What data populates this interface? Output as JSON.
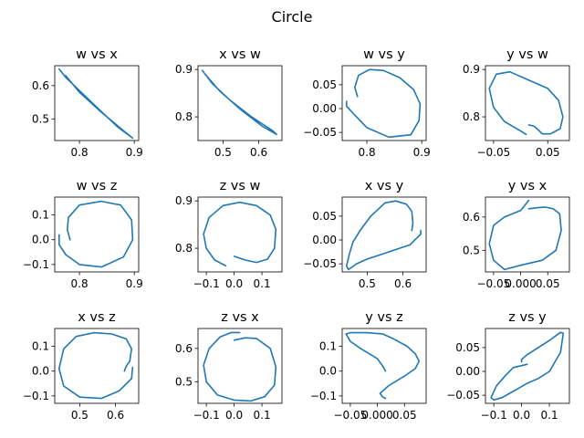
{
  "suptitle": "Circle",
  "line_color": "#1f77b4",
  "chart_data": [
    {
      "type": "line",
      "title": "w vs x",
      "xlim": [
        0.755,
        0.908
      ],
      "ylim": [
        0.435,
        0.66
      ],
      "xticks": [
        {
          "v": 0.8,
          "label": "0.8"
        },
        {
          "v": 0.9,
          "label": "0.9"
        }
      ],
      "yticks": [
        {
          "v": 0.5,
          "label": "0.5"
        },
        {
          "v": 0.6,
          "label": "0.6"
        }
      ],
      "x": [
        0.763,
        0.775,
        0.8,
        0.835,
        0.87,
        0.897,
        0.88,
        0.84,
        0.8,
        0.775
      ],
      "y": [
        0.65,
        0.625,
        0.585,
        0.53,
        0.475,
        0.442,
        0.465,
        0.52,
        0.58,
        0.63
      ]
    },
    {
      "type": "line",
      "title": "x vs w",
      "xlim": [
        0.43,
        0.665
      ],
      "ylim": [
        0.75,
        0.908
      ],
      "xticks": [
        {
          "v": 0.5,
          "label": "0.5"
        },
        {
          "v": 0.6,
          "label": "0.6"
        }
      ],
      "yticks": [
        {
          "v": 0.8,
          "label": "0.8"
        },
        {
          "v": 0.9,
          "label": "0.9"
        }
      ],
      "x": [
        0.442,
        0.47,
        0.52,
        0.58,
        0.64,
        0.65,
        0.61,
        0.55,
        0.49,
        0.45
      ],
      "y": [
        0.898,
        0.87,
        0.835,
        0.8,
        0.77,
        0.763,
        0.78,
        0.815,
        0.855,
        0.89
      ]
    },
    {
      "type": "line",
      "title": "w vs y",
      "xlim": [
        0.755,
        0.908
      ],
      "ylim": [
        -0.067,
        0.09
      ],
      "xticks": [
        {
          "v": 0.8,
          "label": "0.8"
        },
        {
          "v": 0.9,
          "label": "0.9"
        }
      ],
      "yticks": [
        {
          "v": -0.05,
          "label": "−0.05"
        },
        {
          "v": 0.0,
          "label": "0.00"
        },
        {
          "v": 0.05,
          "label": "0.05"
        }
      ],
      "x": [
        0.783,
        0.778,
        0.785,
        0.805,
        0.83,
        0.86,
        0.885,
        0.897,
        0.895,
        0.88,
        0.84,
        0.8,
        0.775,
        0.763,
        0.763
      ],
      "y": [
        0.025,
        0.045,
        0.07,
        0.082,
        0.08,
        0.065,
        0.04,
        0.01,
        -0.025,
        -0.055,
        -0.06,
        -0.04,
        -0.01,
        0.005,
        0.015
      ]
    },
    {
      "type": "line",
      "title": "y vs w",
      "xlim": [
        -0.065,
        0.09
      ],
      "ylim": [
        0.75,
        0.908
      ],
      "xticks": [
        {
          "v": -0.05,
          "label": "−0.05"
        },
        {
          "v": 0.05,
          "label": "0.05"
        }
      ],
      "yticks": [
        {
          "v": 0.8,
          "label": "0.8"
        },
        {
          "v": 0.9,
          "label": "0.9"
        }
      ],
      "x": [
        0.015,
        0.025,
        0.03,
        0.04,
        0.055,
        0.073,
        0.078,
        0.07,
        0.05,
        0.02,
        -0.02,
        -0.045,
        -0.058,
        -0.05,
        -0.03,
        0.0,
        0.01
      ],
      "y": [
        0.783,
        0.78,
        0.775,
        0.764,
        0.764,
        0.775,
        0.8,
        0.835,
        0.86,
        0.875,
        0.895,
        0.89,
        0.86,
        0.82,
        0.79,
        0.77,
        0.763
      ]
    },
    {
      "type": "line",
      "title": "w vs z",
      "xlim": [
        0.755,
        0.908
      ],
      "ylim": [
        -0.13,
        0.172
      ],
      "xticks": [
        {
          "v": 0.8,
          "label": "0.8"
        },
        {
          "v": 0.9,
          "label": "0.9"
        }
      ],
      "yticks": [
        {
          "v": -0.1,
          "label": "−0.1"
        },
        {
          "v": 0.0,
          "label": "0.0"
        },
        {
          "v": 0.1,
          "label": "0.1"
        }
      ],
      "x": [
        0.783,
        0.778,
        0.78,
        0.8,
        0.84,
        0.875,
        0.895,
        0.897,
        0.88,
        0.84,
        0.8,
        0.775,
        0.763,
        0.763
      ],
      "y": [
        0.0,
        0.04,
        0.09,
        0.14,
        0.155,
        0.14,
        0.08,
        0.0,
        -0.07,
        -0.11,
        -0.1,
        -0.06,
        -0.02,
        0.02
      ]
    },
    {
      "type": "line",
      "title": "z vs w",
      "xlim": [
        -0.13,
        0.172
      ],
      "ylim": [
        0.75,
        0.908
      ],
      "xticks": [
        {
          "v": -0.1,
          "label": "−0.1"
        },
        {
          "v": 0.0,
          "label": "0.0"
        },
        {
          "v": 0.1,
          "label": "0.1"
        }
      ],
      "yticks": [
        {
          "v": 0.8,
          "label": "0.8"
        },
        {
          "v": 0.9,
          "label": "0.9"
        }
      ],
      "x": [
        0.0,
        0.04,
        0.08,
        0.12,
        0.145,
        0.15,
        0.13,
        0.08,
        0.02,
        -0.04,
        -0.09,
        -0.11,
        -0.1,
        -0.07,
        -0.03
      ],
      "y": [
        0.783,
        0.775,
        0.77,
        0.777,
        0.8,
        0.84,
        0.87,
        0.89,
        0.897,
        0.89,
        0.865,
        0.83,
        0.8,
        0.775,
        0.763
      ]
    },
    {
      "type": "line",
      "title": "x vs y",
      "xlim": [
        0.43,
        0.665
      ],
      "ylim": [
        -0.067,
        0.09
      ],
      "xticks": [
        {
          "v": 0.5,
          "label": "0.5"
        },
        {
          "v": 0.6,
          "label": "0.6"
        }
      ],
      "yticks": [
        {
          "v": -0.05,
          "label": "−0.05"
        },
        {
          "v": 0.0,
          "label": "0.00"
        },
        {
          "v": 0.05,
          "label": "0.05"
        }
      ],
      "x": [
        0.625,
        0.628,
        0.625,
        0.61,
        0.58,
        0.55,
        0.51,
        0.48,
        0.46,
        0.45,
        0.442,
        0.448,
        0.47,
        0.5,
        0.54,
        0.58,
        0.62,
        0.64,
        0.65,
        0.65
      ],
      "y": [
        0.02,
        0.035,
        0.06,
        0.075,
        0.082,
        0.078,
        0.05,
        0.02,
        -0.005,
        -0.03,
        -0.055,
        -0.062,
        -0.05,
        -0.04,
        -0.03,
        -0.02,
        -0.01,
        0.005,
        0.012,
        0.02
      ]
    },
    {
      "type": "line",
      "title": "y vs x",
      "xlim": [
        -0.065,
        0.09
      ],
      "ylim": [
        0.435,
        0.66
      ],
      "xticks": [
        {
          "v": -0.05,
          "label": "−0.05"
        },
        {
          "v": 0.0,
          "label": "0.000"
        },
        {
          "v": 0.05,
          "label": "0.05"
        }
      ],
      "yticks": [
        {
          "v": 0.5,
          "label": "0.5"
        },
        {
          "v": 0.6,
          "label": "0.6"
        }
      ],
      "x": [
        0.015,
        0.03,
        0.045,
        0.06,
        0.072,
        0.075,
        0.065,
        0.04,
        0.0,
        -0.03,
        -0.05,
        -0.058,
        -0.05,
        -0.03,
        0.0,
        0.01,
        0.015
      ],
      "y": [
        0.625,
        0.628,
        0.63,
        0.625,
        0.61,
        0.56,
        0.5,
        0.47,
        0.455,
        0.442,
        0.47,
        0.52,
        0.575,
        0.6,
        0.62,
        0.64,
        0.65
      ]
    },
    {
      "type": "line",
      "title": "x vs z",
      "xlim": [
        0.43,
        0.665
      ],
      "ylim": [
        -0.13,
        0.172
      ],
      "xticks": [
        {
          "v": 0.5,
          "label": "0.5"
        },
        {
          "v": 0.6,
          "label": "0.6"
        }
      ],
      "yticks": [
        {
          "v": -0.1,
          "label": "−0.1"
        },
        {
          "v": 0.0,
          "label": "0.0"
        },
        {
          "v": 0.1,
          "label": "0.1"
        }
      ],
      "x": [
        0.625,
        0.63,
        0.64,
        0.645,
        0.63,
        0.59,
        0.54,
        0.49,
        0.455,
        0.442,
        0.455,
        0.5,
        0.56,
        0.61,
        0.645,
        0.648
      ],
      "y": [
        0.0,
        0.02,
        0.04,
        0.09,
        0.13,
        0.15,
        0.155,
        0.14,
        0.09,
        0.01,
        -0.06,
        -0.105,
        -0.11,
        -0.08,
        -0.03,
        0.015
      ]
    },
    {
      "type": "line",
      "title": "z vs x",
      "xlim": [
        -0.13,
        0.172
      ],
      "ylim": [
        0.435,
        0.66
      ],
      "xticks": [
        {
          "v": -0.1,
          "label": "−0.1"
        },
        {
          "v": 0.0,
          "label": "0.0"
        },
        {
          "v": 0.1,
          "label": "0.1"
        }
      ],
      "yticks": [
        {
          "v": 0.5,
          "label": "0.5"
        },
        {
          "v": 0.6,
          "label": "0.6"
        }
      ],
      "x": [
        0.0,
        0.04,
        0.08,
        0.13,
        0.15,
        0.145,
        0.11,
        0.06,
        0.0,
        -0.06,
        -0.1,
        -0.11,
        -0.09,
        -0.05,
        -0.01,
        0.02
      ],
      "y": [
        0.625,
        0.632,
        0.63,
        0.6,
        0.545,
        0.49,
        0.455,
        0.442,
        0.445,
        0.46,
        0.5,
        0.55,
        0.6,
        0.635,
        0.648,
        0.648
      ]
    },
    {
      "type": "line",
      "title": "y vs z",
      "xlim": [
        -0.065,
        0.09
      ],
      "ylim": [
        -0.13,
        0.172
      ],
      "xticks": [
        {
          "v": -0.05,
          "label": "−0.05"
        },
        {
          "v": 0.0,
          "label": "0.000"
        },
        {
          "v": 0.05,
          "label": "0.05"
        }
      ],
      "yticks": [
        {
          "v": -0.1,
          "label": "−0.1"
        },
        {
          "v": 0.0,
          "label": "0.0"
        },
        {
          "v": 0.1,
          "label": "0.1"
        }
      ],
      "x": [
        0.015,
        0.01,
        0.0,
        -0.03,
        -0.05,
        -0.058,
        -0.05,
        -0.02,
        0.01,
        0.03,
        0.055,
        0.07,
        0.077,
        0.07,
        0.05,
        0.02,
        0.005,
        0.01,
        0.015
      ],
      "y": [
        0.0,
        0.02,
        0.05,
        0.09,
        0.12,
        0.15,
        0.155,
        0.155,
        0.15,
        0.13,
        0.1,
        0.07,
        0.04,
        0.01,
        -0.02,
        -0.06,
        -0.09,
        -0.105,
        -0.11
      ]
    },
    {
      "type": "line",
      "title": "z vs y",
      "xlim": [
        -0.13,
        0.172
      ],
      "ylim": [
        -0.067,
        0.09
      ],
      "xticks": [
        {
          "v": -0.1,
          "label": "−0.1"
        },
        {
          "v": 0.0,
          "label": "0.0"
        },
        {
          "v": 0.1,
          "label": "0.1"
        }
      ],
      "yticks": [
        {
          "v": -0.05,
          "label": "−0.05"
        },
        {
          "v": 0.0,
          "label": "0.00"
        },
        {
          "v": 0.05,
          "label": "0.05"
        }
      ],
      "x": [
        0.02,
        0.0,
        -0.03,
        -0.06,
        -0.09,
        -0.11,
        -0.1,
        -0.07,
        -0.04,
        -0.01,
        0.02,
        0.06,
        0.1,
        0.14,
        0.15,
        0.14,
        0.1,
        0.06,
        0.02,
        0.0,
        0.0
      ],
      "y": [
        0.015,
        0.012,
        0.008,
        -0.01,
        -0.03,
        -0.055,
        -0.06,
        -0.055,
        -0.045,
        -0.035,
        -0.025,
        -0.015,
        0.0,
        0.04,
        0.08,
        0.082,
        0.065,
        0.05,
        0.035,
        0.025,
        0.02
      ]
    }
  ]
}
